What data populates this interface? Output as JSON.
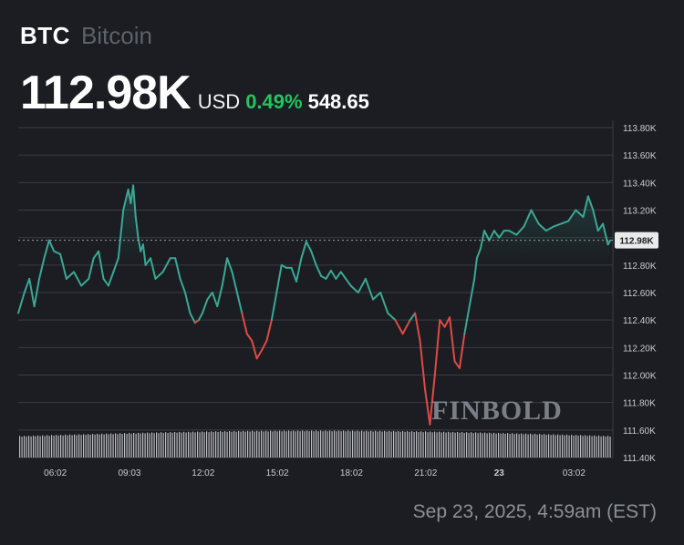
{
  "header": {
    "ticker": "BTC",
    "name": "Bitcoin",
    "price": "112.98K",
    "currency": "USD",
    "change_pct": "0.49%",
    "change_abs": "548.65"
  },
  "colors": {
    "background": "#1b1d22",
    "up": "#3aa894",
    "down": "#e04a45",
    "positive_text": "#22c55e",
    "grid": "#3a3d44",
    "axis_text": "#c9ccd1"
  },
  "watermark": "FINBOLD",
  "footer": {
    "timestamp": "Sep 23, 2025, 4:59am (EST)"
  },
  "chart_data": {
    "type": "line",
    "x_tick_labels": [
      "06:02",
      "09:03",
      "12:02",
      "15:02",
      "18:02",
      "21:02",
      "23",
      "03:02"
    ],
    "y_tick_labels": [
      "113.80K",
      "113.60K",
      "113.40K",
      "113.20K",
      "113.00K",
      "112.80K",
      "112.60K",
      "112.40K",
      "112.20K",
      "112.00K",
      "111.80K",
      "111.60K",
      "111.40K"
    ],
    "ylim": [
      111400,
      113800
    ],
    "reference_value": 112800,
    "last_price_label": "112.98K",
    "last_price": 112980,
    "grid": true,
    "hours": [
      4.55,
      4.8,
      5.0,
      5.2,
      5.4,
      5.6,
      5.8,
      6.0,
      6.25,
      6.5,
      6.8,
      7.1,
      7.4,
      7.6,
      7.8,
      8.0,
      8.2,
      8.4,
      8.6,
      8.8,
      9.0,
      9.1,
      9.2,
      9.3,
      9.4,
      9.5,
      9.6,
      9.7,
      9.9,
      10.1,
      10.4,
      10.7,
      10.9,
      11.1,
      11.3,
      11.5,
      11.7,
      11.85,
      12.0,
      12.2,
      12.4,
      12.6,
      12.8,
      13.0,
      13.2,
      13.4,
      13.6,
      13.8,
      14.0,
      14.2,
      14.4,
      14.6,
      14.8,
      15.0,
      15.2,
      15.4,
      15.6,
      15.8,
      16.0,
      16.2,
      16.4,
      16.6,
      16.8,
      17.0,
      17.2,
      17.4,
      17.6,
      17.8,
      18.0,
      18.3,
      18.6,
      18.9,
      19.2,
      19.5,
      19.8,
      20.1,
      20.4,
      20.6,
      20.8,
      21.0,
      21.2,
      21.4,
      21.6,
      21.8,
      22.0,
      22.2,
      22.4,
      22.6,
      22.8,
      23.0,
      23.1,
      23.25,
      23.4,
      23.6,
      23.8,
      24.0,
      24.2,
      24.4,
      24.7,
      25.0,
      25.3,
      25.6,
      25.9,
      26.2,
      26.5,
      26.8,
      27.1,
      27.4,
      27.6,
      27.8,
      28.0,
      28.2,
      28.4,
      28.5
    ],
    "prices": [
      112450,
      112600,
      112700,
      112500,
      112700,
      112850,
      112980,
      112900,
      112880,
      112700,
      112750,
      112650,
      112700,
      112850,
      112900,
      112700,
      112650,
      112750,
      112850,
      113200,
      113350,
      113250,
      113380,
      113150,
      113000,
      112900,
      112950,
      112800,
      112850,
      112700,
      112750,
      112850,
      112850,
      112700,
      112600,
      112450,
      112380,
      112400,
      112450,
      112550,
      112600,
      112500,
      112650,
      112850,
      112750,
      112600,
      112450,
      112300,
      112250,
      112120,
      112180,
      112250,
      112400,
      112600,
      112800,
      112780,
      112780,
      112680,
      112850,
      112970,
      112900,
      112800,
      112720,
      112700,
      112760,
      112700,
      112750,
      112700,
      112650,
      112600,
      112700,
      112550,
      112600,
      112450,
      112400,
      112300,
      112400,
      112450,
      112250,
      111900,
      111640,
      112000,
      112400,
      112350,
      112420,
      112100,
      112050,
      112300,
      112500,
      112700,
      112850,
      112920,
      113050,
      112980,
      113050,
      113000,
      113050,
      113050,
      113020,
      113080,
      113200,
      113100,
      113050,
      113080,
      113100,
      113120,
      113200,
      113150,
      113300,
      113200,
      113050,
      113100,
      112950,
      112980
    ]
  }
}
